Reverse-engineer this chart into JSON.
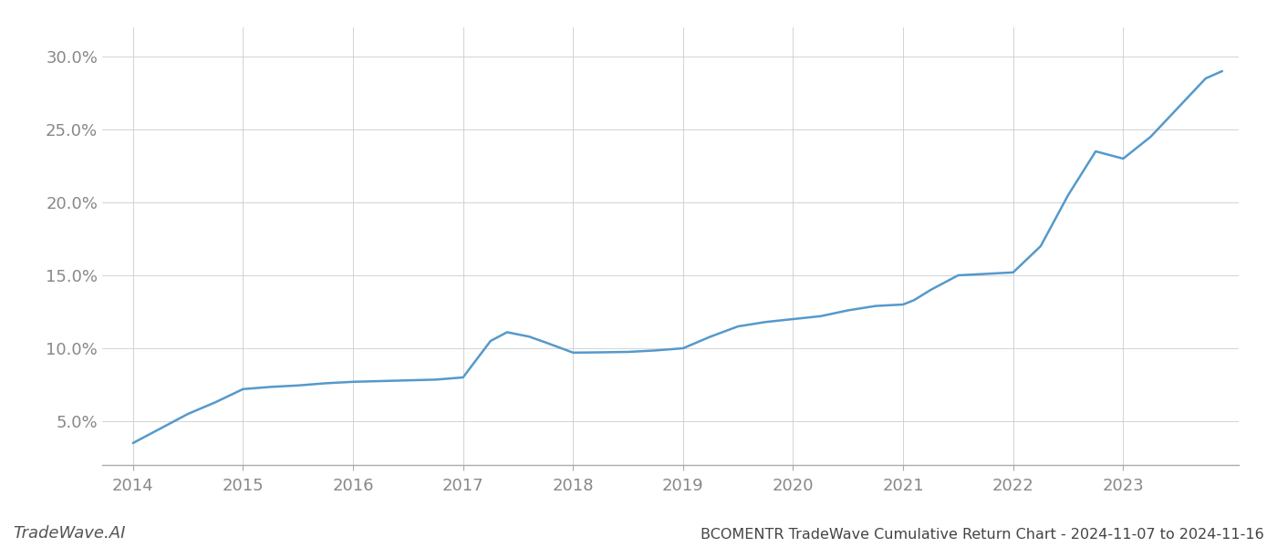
{
  "title": "BCOMENTR TradeWave Cumulative Return Chart - 2024-11-07 to 2024-11-16",
  "watermark": "TradeWave.AI",
  "line_color": "#5599cc",
  "background_color": "#ffffff",
  "grid_color": "#cccccc",
  "x_values": [
    2014.0,
    2014.25,
    2014.5,
    2014.75,
    2015.0,
    2015.25,
    2015.5,
    2015.75,
    2016.0,
    2016.25,
    2016.5,
    2016.75,
    2017.0,
    2017.1,
    2017.25,
    2017.4,
    2017.6,
    2017.75,
    2018.0,
    2018.25,
    2018.5,
    2018.75,
    2019.0,
    2019.25,
    2019.5,
    2019.75,
    2020.0,
    2020.25,
    2020.5,
    2020.75,
    2021.0,
    2021.1,
    2021.25,
    2021.5,
    2021.75,
    2022.0,
    2022.25,
    2022.5,
    2022.75,
    2023.0,
    2023.25,
    2023.5,
    2023.75,
    2023.9
  ],
  "y_values": [
    3.5,
    4.5,
    5.5,
    6.3,
    7.2,
    7.35,
    7.45,
    7.6,
    7.7,
    7.75,
    7.8,
    7.85,
    8.0,
    9.0,
    10.5,
    11.1,
    10.8,
    10.4,
    9.7,
    9.72,
    9.75,
    9.85,
    10.0,
    10.8,
    11.5,
    11.8,
    12.0,
    12.2,
    12.6,
    12.9,
    13.0,
    13.3,
    14.0,
    15.0,
    15.1,
    15.2,
    17.0,
    20.5,
    23.5,
    23.0,
    24.5,
    26.5,
    28.5,
    29.0
  ],
  "xlim": [
    2013.72,
    2024.05
  ],
  "ylim": [
    2.0,
    32.0
  ],
  "xticks": [
    2014,
    2015,
    2016,
    2017,
    2018,
    2019,
    2020,
    2021,
    2022,
    2023
  ],
  "yticks": [
    5.0,
    10.0,
    15.0,
    20.0,
    25.0,
    30.0
  ],
  "ytick_labels": [
    "5.0%",
    "10.0%",
    "15.0%",
    "20.0%",
    "25.0%",
    "30.0%"
  ],
  "line_width": 1.8,
  "font_size_ticks": 13,
  "font_size_watermark": 13,
  "font_size_title": 11.5,
  "tick_color": "#888888",
  "spine_color": "#aaaaaa"
}
